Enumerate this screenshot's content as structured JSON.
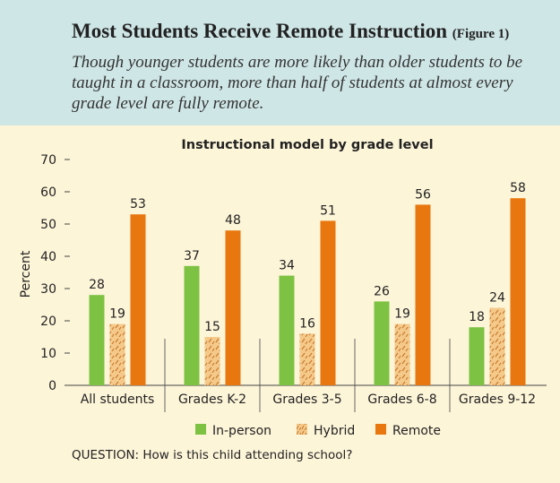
{
  "header": {
    "title": "Most Students Receive Remote Instruction",
    "figure_label": "(Figure 1)",
    "subtitle": "Though younger students are more likely than older students to be taught in a classroom, more than half of students at almost every grade level are fully remote."
  },
  "question": "QUESTION: How is this child attending school?",
  "colors": {
    "header_bg": "#cfe6e6",
    "panel_bg": "#fdf5d8",
    "in_person": "#7dc242",
    "hybrid": "#f4c98a",
    "hybrid_pattern": "#c8782a",
    "remote": "#e8770f"
  },
  "chart_data": {
    "type": "bar",
    "title": "Instructional model by grade level",
    "xlabel": "",
    "ylabel": "Percent",
    "ylim": [
      0,
      70
    ],
    "yticks": [
      0,
      10,
      20,
      30,
      40,
      50,
      60,
      70
    ],
    "categories": [
      "All students",
      "Grades K-2",
      "Grades 3-5",
      "Grades 6-8",
      "Grades 9-12"
    ],
    "series": [
      {
        "name": "In-person",
        "values": [
          28,
          37,
          34,
          26,
          18
        ]
      },
      {
        "name": "Hybrid",
        "values": [
          19,
          15,
          16,
          19,
          24
        ]
      },
      {
        "name": "Remote",
        "values": [
          53,
          48,
          51,
          56,
          58
        ]
      }
    ],
    "data_labels": true,
    "legend": "bottom",
    "grid": false
  }
}
